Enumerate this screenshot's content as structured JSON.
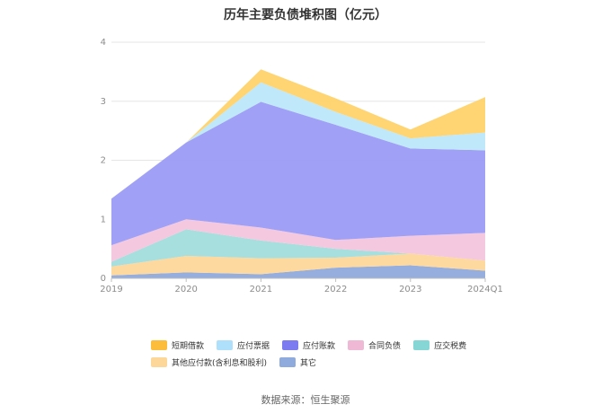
{
  "chart_data": {
    "type": "area",
    "title": "历年主要负债堆积图（亿元）",
    "xlabel": "",
    "ylabel": "",
    "categories": [
      "2019",
      "2020",
      "2021",
      "2022",
      "2023",
      "2024Q1"
    ],
    "ylim": [
      0,
      4
    ],
    "yticks": [
      "0",
      "1",
      "2",
      "3",
      "4"
    ],
    "grid": true,
    "legend_position": "bottom",
    "series": [
      {
        "name": "其它",
        "color": "#8faadc",
        "values": [
          0.05,
          0.1,
          0.07,
          0.18,
          0.22,
          0.13
        ]
      },
      {
        "name": "其他应付款(含利息和股利)",
        "color": "#fdd79a",
        "values": [
          0.15,
          0.28,
          0.27,
          0.17,
          0.2,
          0.17
        ]
      },
      {
        "name": "应交税费",
        "color": "#a2dcdc",
        "values": [
          0.08,
          0.45,
          0.3,
          0.15,
          0.0,
          0.0
        ]
      },
      {
        "name": "合同负债",
        "color": "#f3c6dd",
        "values": [
          0.28,
          0.17,
          0.22,
          0.15,
          0.3,
          0.47
        ]
      },
      {
        "name": "应付账款",
        "color": "#9b9cf5",
        "values": [
          0.79,
          1.3,
          2.13,
          1.95,
          1.48,
          1.4
        ]
      },
      {
        "name": "应付票据",
        "color": "#bde7fb",
        "values": [
          0.0,
          0.0,
          0.33,
          0.22,
          0.17,
          0.3
        ]
      },
      {
        "name": "短期借款",
        "color": "#ffd36b",
        "values": [
          0.0,
          0.0,
          0.22,
          0.23,
          0.15,
          0.6
        ]
      }
    ]
  },
  "legend": {
    "items": [
      {
        "label": "短期借款",
        "color": "#fbbd3b"
      },
      {
        "label": "应付票据",
        "color": "#aee0fb"
      },
      {
        "label": "应付账款",
        "color": "#7c7cf0"
      },
      {
        "label": "合同负债",
        "color": "#efb9d6"
      },
      {
        "label": "应交税费",
        "color": "#86d6d6"
      },
      {
        "label": "其他应付款(含利息和股利)",
        "color": "#fdd79a"
      },
      {
        "label": "其它",
        "color": "#8faadc"
      }
    ]
  },
  "source": "数据来源：恒生聚源"
}
